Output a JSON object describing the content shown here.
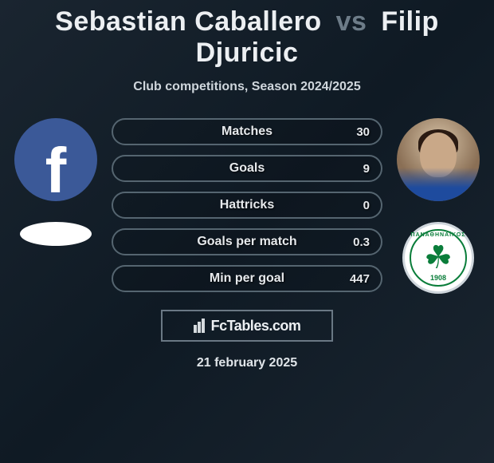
{
  "title": {
    "player1": "Sebastian Caballero",
    "vs": "vs",
    "player2": "Filip Djuricic"
  },
  "subtitle": "Club competitions, Season 2024/2025",
  "stats": [
    {
      "label": "Matches",
      "value": "30"
    },
    {
      "label": "Goals",
      "value": "9"
    },
    {
      "label": "Hattricks",
      "value": "0"
    },
    {
      "label": "Goals per match",
      "value": "0.3"
    },
    {
      "label": "Min per goal",
      "value": "447"
    }
  ],
  "brand": "FcTables.com",
  "date": "21 february 2025",
  "badge": {
    "top_text": "ΠΑΝΑΘΗΝΑΪΚΟΣ",
    "year": "1908"
  },
  "styling": {
    "bg_gradient": [
      "#1a2530",
      "#0f1a24",
      "#1a2530"
    ],
    "title_fontsize": 34,
    "subtitle_fontsize": 16,
    "stat_border_color": "#556570",
    "stat_height": 34,
    "stat_radius": 18,
    "stat_label_fontsize": 16,
    "stat_value_fontsize": 15,
    "brand_border_color": "#6a7884",
    "fb_color": "#3b5998",
    "clover_color": "#0a7d3a",
    "text_color": "#eceff2",
    "muted_color": "#6d7c88"
  }
}
